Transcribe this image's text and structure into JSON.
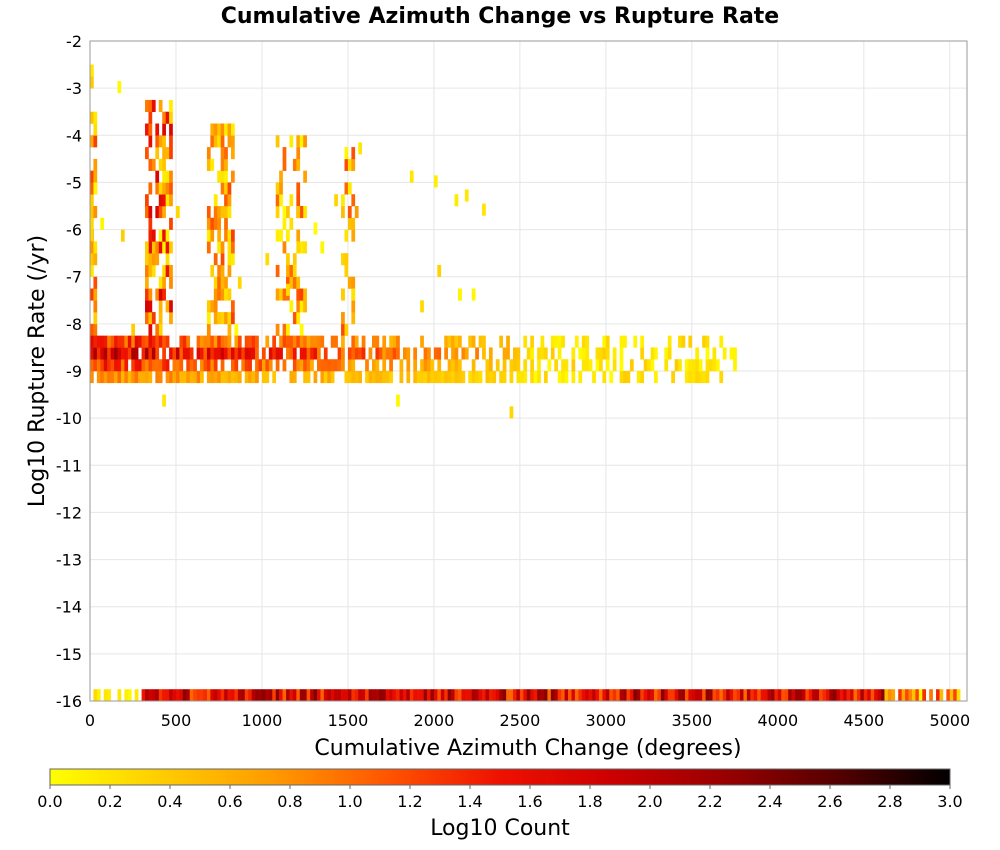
{
  "chart_data": {
    "type": "heatmap",
    "title": "Cumulative Azimuth Change vs Rupture Rate",
    "xlabel": "Cumulative Azimuth Change (degrees)",
    "ylabel": "Log10 Rupture Rate (/yr)",
    "xlim": [
      0,
      5100
    ],
    "ylim": [
      -16,
      -2
    ],
    "x_ticks": [
      "0",
      "500",
      "1000",
      "1500",
      "2000",
      "2500",
      "3000",
      "3500",
      "4000",
      "4500",
      "5000"
    ],
    "y_ticks": [
      "-2",
      "-3",
      "-4",
      "-5",
      "-6",
      "-7",
      "-8",
      "-9",
      "-10",
      "-11",
      "-12",
      "-13",
      "-14",
      "-15",
      "-16"
    ],
    "grid": true,
    "cell_width_degrees": 20,
    "cell_height_log10": 0.25,
    "colorbar": {
      "label": "Log10 Count",
      "min": 0.0,
      "max": 3.0,
      "ticks": [
        "0.0",
        "0.2",
        "0.4",
        "0.6",
        "0.8",
        "1.0",
        "1.2",
        "1.4",
        "1.6",
        "1.8",
        "2.0",
        "2.2",
        "2.4",
        "2.6",
        "2.8",
        "3.0"
      ],
      "colormap": [
        "#ffff00",
        "#ffcc00",
        "#ff9900",
        "#ff5500",
        "#ee1100",
        "#cc0000",
        "#990000",
        "#550000",
        "#000000"
      ]
    },
    "cluster_columns": [
      {
        "x_start": 0,
        "x_end": 40
      },
      {
        "x_start": 320,
        "x_end": 480
      },
      {
        "x_start": 680,
        "x_end": 840
      },
      {
        "x_start": 1080,
        "x_end": 1260
      },
      {
        "x_start": 1460,
        "x_end": 1560
      }
    ],
    "dense_band": {
      "y_from": -9.25,
      "y_to": -8.25,
      "x_start": 0,
      "x_end": 3750,
      "peak_log10_count": 2.4
    },
    "bottom_band": {
      "y": -16,
      "x_start": 0,
      "x_end": 5100,
      "peak_log10_count": 2.4
    },
    "isolated_points": [
      {
        "x": 170,
        "y": -3.1
      },
      {
        "x": 430,
        "y": -9.75
      },
      {
        "x": 1780,
        "y": -9.75
      },
      {
        "x": 2450,
        "y": -10.0
      },
      {
        "x": 2830,
        "y": -8.5
      },
      {
        "x": 3350,
        "y": -8.75
      },
      {
        "x": 3500,
        "y": -9.0
      },
      {
        "x": 3630,
        "y": -9.0
      },
      {
        "x": 3740,
        "y": -9.0
      },
      {
        "x": 2000,
        "y": -5.1
      },
      {
        "x": 2180,
        "y": -5.4
      },
      {
        "x": 2280,
        "y": -5.7
      },
      {
        "x": 1560,
        "y": -4.4
      },
      {
        "x": 1300,
        "y": -6.1
      },
      {
        "x": 1150,
        "y": -7.4
      },
      {
        "x": 2150,
        "y": -7.5
      },
      {
        "x": 2230,
        "y": -7.5
      },
      {
        "x": 1520,
        "y": -7.5
      }
    ]
  }
}
